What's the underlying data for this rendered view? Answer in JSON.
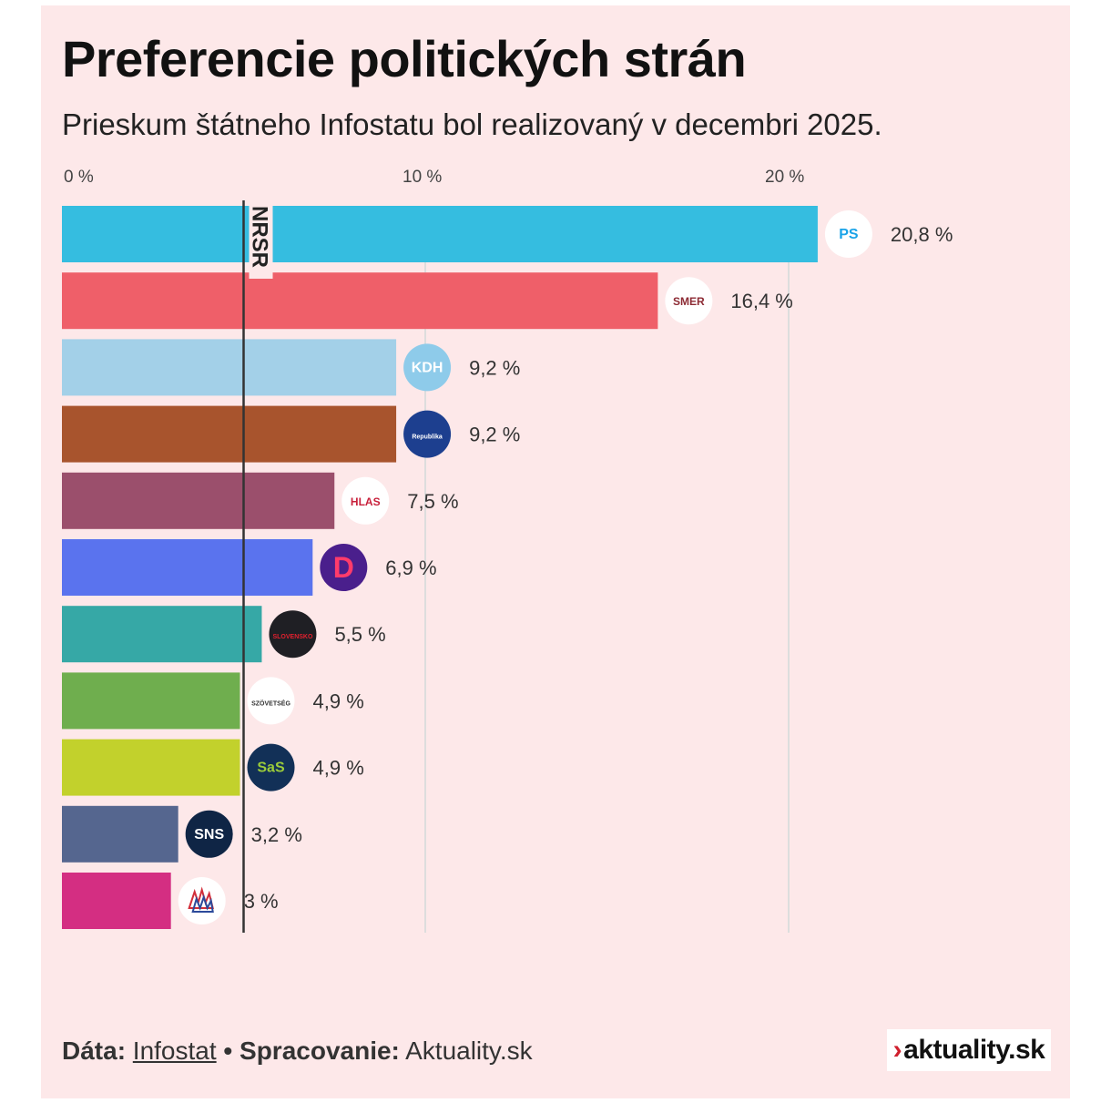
{
  "header": {
    "title": "Preferencie politických strán",
    "subtitle": "Prieskum štátneho Infostatu bol realizovaný v decembri 2025."
  },
  "chart_data": {
    "type": "bar",
    "orientation": "horizontal",
    "title": "Preferencie politických strán",
    "subtitle": "Prieskum štátneho Infostatu bol realizovaný v decembri 2025.",
    "xlabel": "",
    "ylabel": "",
    "xlim": [
      0,
      22
    ],
    "x_ticks": [
      {
        "value": 0,
        "label": "0 %"
      },
      {
        "value": 10,
        "label": "10 %"
      },
      {
        "value": 20,
        "label": "20 %"
      }
    ],
    "grid": true,
    "reference_line": {
      "value": 5,
      "label": "NRSR"
    },
    "categories": [
      "PS",
      "SMER",
      "KDH",
      "Republika",
      "HLAS",
      "Demokrati",
      "Hnutie Slovensko",
      "Szövetség",
      "SaS",
      "SNS",
      "Maďarská aliancia / ruky"
    ],
    "values": [
      20.8,
      16.4,
      9.2,
      9.2,
      7.5,
      6.9,
      5.5,
      4.9,
      4.9,
      3.2,
      3.0
    ],
    "value_labels": [
      "20,8 %",
      "16,4 %",
      "9,2 %",
      "9,2 %",
      "7,5 %",
      "6,9 %",
      "5,5 %",
      "4,9 %",
      "4,9 %",
      "3,2 %",
      "3 %"
    ],
    "colors": [
      "#35bde0",
      "#ef5f69",
      "#a3d0e8",
      "#a8542d",
      "#9b4f6c",
      "#5a73ee",
      "#36a8a6",
      "#6fae4e",
      "#c2d12c",
      "#55668f",
      "#d42e82"
    ],
    "logos": [
      {
        "icon": "ps-logo-icon",
        "text": "PS",
        "bg": "#ffffff",
        "fg": "#1aa3e8"
      },
      {
        "icon": "smer-logo-icon",
        "text": "SMER",
        "bg": "#ffffff",
        "fg": "#8c2a33"
      },
      {
        "icon": "kdh-logo-icon",
        "text": "KDH",
        "bg": "#8ecbea",
        "fg": "#ffffff"
      },
      {
        "icon": "republika-logo-icon",
        "text": "Republika",
        "bg": "#1d3f8f",
        "fg": "#ffffff"
      },
      {
        "icon": "hlas-logo-icon",
        "text": "HLAS",
        "bg": "#ffffff",
        "fg": "#c8203b"
      },
      {
        "icon": "demokrati-logo-icon",
        "text": "D",
        "bg": "#4a1f8c",
        "fg": "#ff3b6b"
      },
      {
        "icon": "hnutie-slovensko-logo-icon",
        "text": "SLOVENSKO",
        "bg": "#1f1f24",
        "fg": "#e0202e"
      },
      {
        "icon": "szovetseg-logo-icon",
        "text": "SZÖVETSÉG",
        "bg": "#ffffff",
        "fg": "#333333"
      },
      {
        "icon": "sas-logo-icon",
        "text": "SaS",
        "bg": "#123057",
        "fg": "#9ccc3a"
      },
      {
        "icon": "sns-logo-icon",
        "text": "SNS",
        "bg": "#0f2545",
        "fg": "#ffffff"
      },
      {
        "icon": "hands-logo-icon",
        "text": "",
        "bg": "#ffffff",
        "fg": "#d22e3a"
      }
    ]
  },
  "footer": {
    "data_label": "Dáta:",
    "data_source": "Infostat",
    "separator": "•",
    "processing_label": "Spracovanie:",
    "processing_value": "Aktuality.sk"
  },
  "brand": {
    "chevron": "›",
    "name": "aktuality.sk"
  },
  "colors": {
    "background": "#fde8e9",
    "reference_line": "#333333",
    "gridline": "#dddddd"
  }
}
